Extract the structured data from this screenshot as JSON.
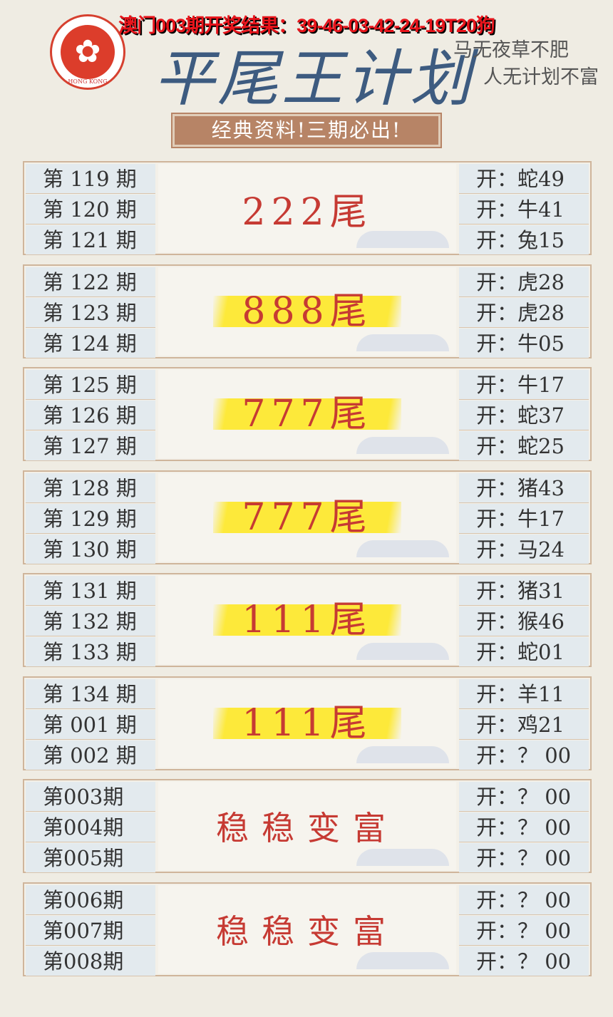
{
  "headline": "澳门003期开奖结果：39-46-03-42-24-19T20狗",
  "seal": {
    "text": "HONG KONG",
    "icon": "bauhinia-icon",
    "color": "#dc3d2b"
  },
  "title": "平尾王计划",
  "motto": [
    "马无夜草不肥",
    "人无计划不富"
  ],
  "banner": "经典资料!三期必出!",
  "blocks": [
    {
      "periods": [
        "第 119 期",
        "第 120 期",
        "第 121 期"
      ],
      "pick": "222尾",
      "highlight": false,
      "results": [
        "开：蛇49",
        "开：牛41",
        "开：兔15"
      ]
    },
    {
      "periods": [
        "第 122 期",
        "第 123 期",
        "第 124 期"
      ],
      "pick": "888尾",
      "highlight": true,
      "results": [
        "开：虎28",
        "开：虎28",
        "开：牛05"
      ]
    },
    {
      "periods": [
        "第 125 期",
        "第 126 期",
        "第 127 期"
      ],
      "pick": "777尾",
      "highlight": true,
      "results": [
        "开：牛17",
        "开：蛇37",
        "开：蛇25"
      ]
    },
    {
      "periods": [
        "第 128 期",
        "第 129 期",
        "第 130 期"
      ],
      "pick": "777尾",
      "highlight": true,
      "results": [
        "开：猪43",
        "开：牛17",
        "开：马24"
      ]
    },
    {
      "periods": [
        "第 131 期",
        "第 132 期",
        "第 133 期"
      ],
      "pick": "111尾",
      "highlight": true,
      "results": [
        "开：猪31",
        "开：猴46",
        "开：蛇01"
      ]
    },
    {
      "periods": [
        "第 134 期",
        "第 001 期",
        "第 002 期"
      ],
      "pick": "111尾",
      "highlight": true,
      "results": [
        "开：羊11",
        "开：鸡21",
        "开：？ 00"
      ]
    },
    {
      "periods": [
        "第003期",
        "第004期",
        "第005期"
      ],
      "pick": "稳稳变富",
      "highlight": false,
      "motto": true,
      "results": [
        "开：？ 00",
        "开：？ 00",
        "开：？ 00"
      ]
    },
    {
      "periods": [
        "第006期",
        "第007期",
        "第008期"
      ],
      "pick": "稳稳变富",
      "highlight": false,
      "motto": true,
      "results": [
        "开：？ 00",
        "开：？ 00",
        "开：？ 00"
      ]
    }
  ]
}
